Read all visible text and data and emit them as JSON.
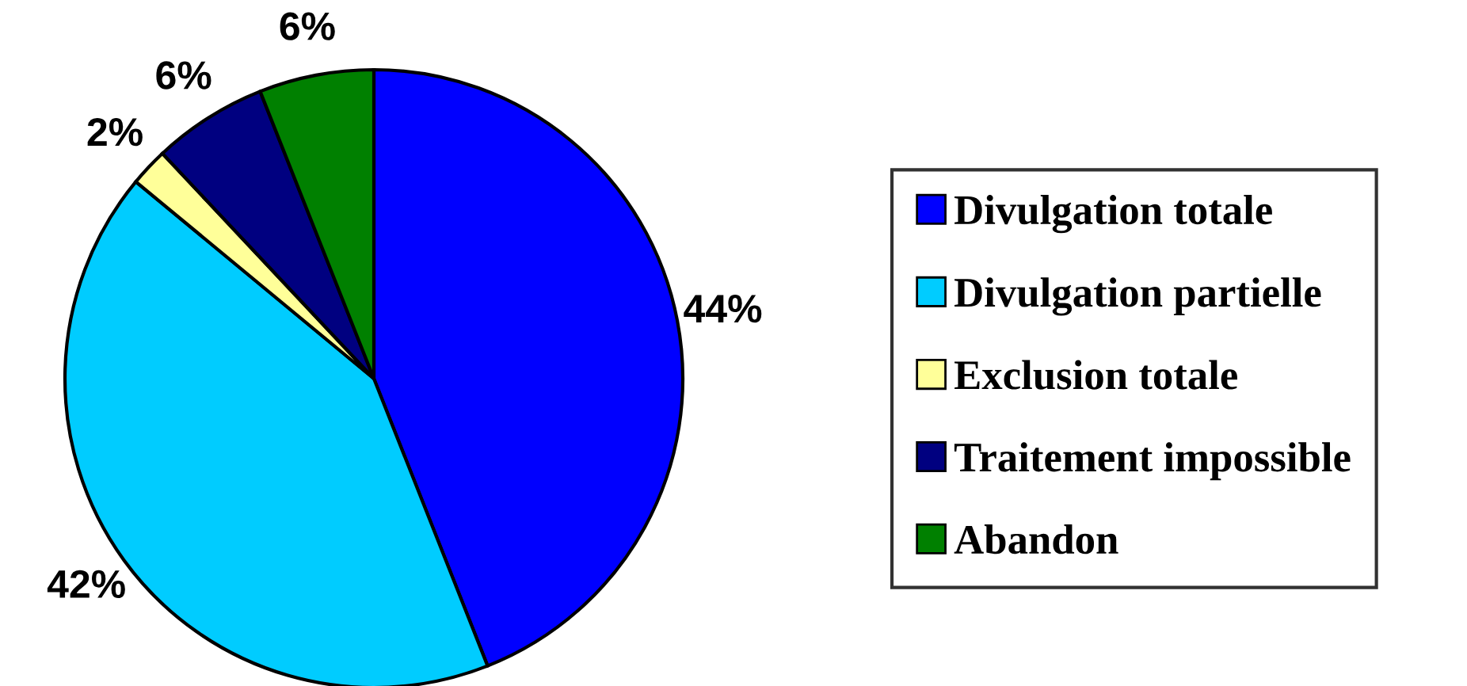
{
  "chart_data": {
    "type": "pie",
    "categories": [
      "Divulgation totale",
      "Divulgation partielle",
      "Exclusion totale",
      "Traitement impossible",
      "Abandon"
    ],
    "values": [
      44,
      42,
      2,
      6,
      6
    ],
    "colors": [
      "#0000ff",
      "#00ccff",
      "#ffff99",
      "#000080",
      "#008000"
    ],
    "value_labels": [
      "44%",
      "42%",
      "2%",
      "6%",
      "6%"
    ],
    "legend": "right"
  }
}
